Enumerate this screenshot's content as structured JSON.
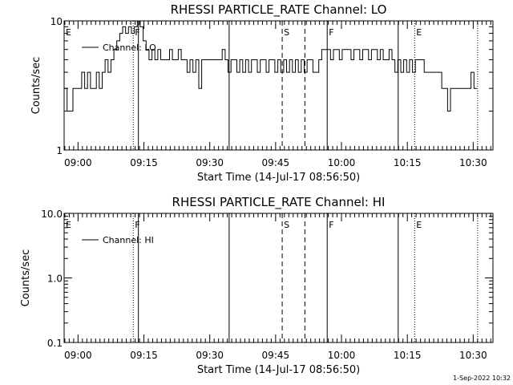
{
  "chart_data": [
    {
      "type": "line",
      "title": "RHESSI PARTICLE_RATE Channel: LO",
      "xlabel": "Start Time (14-Jul-17 08:56:50)",
      "ylabel": "Counts/sec",
      "yscale": "log",
      "ylim": [
        1,
        10
      ],
      "ytick_labels": [
        "10",
        "1"
      ],
      "xlim": [
        "08:56:50",
        "10:34:30"
      ],
      "xtick_labels": [
        "09:00",
        "09:15",
        "09:30",
        "09:45",
        "10:00",
        "10:15",
        "10:30"
      ],
      "legend": {
        "entry": "Channel: LO",
        "placement": "top-left"
      },
      "markers": [
        {
          "label": "E",
          "time": "08:56:50",
          "style": "none"
        },
        {
          "label": "F",
          "time": "09:12:35",
          "style": "dotted"
        },
        {
          "label": "",
          "time": "09:13:45",
          "style": "solid"
        },
        {
          "label": "",
          "time": "09:34:25",
          "style": "solid"
        },
        {
          "label": "S",
          "time": "09:46:30",
          "style": "dashed"
        },
        {
          "label": "",
          "time": "09:51:40",
          "style": "dashed"
        },
        {
          "label": "F",
          "time": "09:56:45",
          "style": "solid"
        },
        {
          "label": "",
          "time": "10:12:55",
          "style": "solid"
        },
        {
          "label": "E",
          "time": "10:16:40",
          "style": "dotted"
        },
        {
          "label": "",
          "time": "10:31:00",
          "style": "dotted"
        }
      ],
      "series": [
        {
          "name": "Channel: LO",
          "x": [
            "08:56:50",
            "08:57:30",
            "08:58:10",
            "08:58:50",
            "08:59:30",
            "09:00:10",
            "09:00:50",
            "09:01:30",
            "09:02:10",
            "09:02:50",
            "09:03:30",
            "09:04:10",
            "09:04:50",
            "09:05:30",
            "09:06:10",
            "09:06:50",
            "09:07:30",
            "09:08:10",
            "09:08:50",
            "09:09:30",
            "09:10:10",
            "09:10:50",
            "09:11:30",
            "09:12:10",
            "09:12:50",
            "09:13:30",
            "09:14:10",
            "09:14:50",
            "09:15:30",
            "09:16:10",
            "09:16:50",
            "09:17:30",
            "09:18:10",
            "09:18:50",
            "09:19:30",
            "09:20:10",
            "09:20:50",
            "09:21:30",
            "09:22:10",
            "09:22:50",
            "09:23:30",
            "09:24:10",
            "09:24:50",
            "09:25:30",
            "09:26:10",
            "09:26:50",
            "09:27:30",
            "09:28:10",
            "09:28:50",
            "09:29:30",
            "09:30:10",
            "09:30:50",
            "09:31:30",
            "09:32:10",
            "09:32:50",
            "09:33:30",
            "09:34:10",
            "09:34:50",
            "09:35:30",
            "09:36:10",
            "09:36:50",
            "09:37:30",
            "09:38:10",
            "09:38:50",
            "09:39:30",
            "09:40:10",
            "09:40:50",
            "09:41:30",
            "09:42:10",
            "09:42:50",
            "09:43:30",
            "09:44:10",
            "09:44:50",
            "09:45:30",
            "09:46:10",
            "09:46:50",
            "09:47:30",
            "09:48:10",
            "09:48:50",
            "09:49:30",
            "09:50:10",
            "09:50:50",
            "09:51:30",
            "09:52:10",
            "09:52:50",
            "09:53:30",
            "09:54:10",
            "09:54:50",
            "09:55:30",
            "09:56:10",
            "09:56:50",
            "09:57:30",
            "09:58:10",
            "09:58:50",
            "09:59:30",
            "10:00:10",
            "10:00:50",
            "10:01:30",
            "10:02:10",
            "10:02:50",
            "10:03:30",
            "10:04:10",
            "10:04:50",
            "10:05:30",
            "10:06:10",
            "10:06:50",
            "10:07:30",
            "10:08:10",
            "10:08:50",
            "10:09:30",
            "10:10:10",
            "10:10:50",
            "10:11:30",
            "10:12:10",
            "10:12:50",
            "10:13:30",
            "10:14:10",
            "10:14:50",
            "10:15:30",
            "10:16:10",
            "10:16:50",
            "10:17:30",
            "10:18:10",
            "10:18:50",
            "10:19:30",
            "10:20:10",
            "10:20:50",
            "10:21:30",
            "10:22:10",
            "10:22:50",
            "10:23:30",
            "10:24:10",
            "10:24:50",
            "10:25:30",
            "10:26:10",
            "10:26:50",
            "10:27:30",
            "10:28:10",
            "10:28:50",
            "10:29:30",
            "10:30:10"
          ],
          "values": [
            3,
            2,
            2,
            3,
            3,
            3,
            4,
            3,
            4,
            3,
            3,
            4,
            3,
            4,
            5,
            4,
            5,
            6,
            7,
            8,
            9,
            8,
            9,
            8,
            9,
            10,
            9,
            7,
            6,
            5,
            6,
            5,
            6,
            5,
            5,
            5,
            6,
            5,
            5,
            6,
            5,
            5,
            4,
            5,
            4,
            5,
            3,
            5,
            5,
            5,
            5,
            5,
            5,
            5,
            6,
            5,
            4,
            5,
            5,
            4,
            5,
            4,
            5,
            4,
            5,
            5,
            4,
            5,
            5,
            4,
            5,
            5,
            4,
            5,
            4,
            5,
            4,
            5,
            4,
            5,
            4,
            5,
            4,
            5,
            5,
            4,
            4,
            5,
            6,
            6,
            6,
            5,
            6,
            6,
            5,
            6,
            6,
            6,
            5,
            6,
            6,
            5,
            6,
            6,
            5,
            6,
            6,
            5,
            6,
            5,
            5,
            6,
            5,
            4,
            5,
            4,
            5,
            4,
            5,
            4,
            5,
            5,
            5,
            4,
            4,
            4,
            4,
            4,
            4,
            3,
            3,
            2,
            3,
            3,
            3,
            3,
            3,
            3,
            3,
            4,
            3
          ]
        }
      ]
    },
    {
      "type": "line",
      "title": "RHESSI PARTICLE_RATE Channel: HI",
      "xlabel": "Start Time (14-Jul-17 08:56:50)",
      "ylabel": "Counts/sec",
      "yscale": "log",
      "ylim": [
        0.1,
        10
      ],
      "ytick_labels": [
        "10.0",
        "1.0",
        "0.1"
      ],
      "xlim": [
        "08:56:50",
        "10:34:30"
      ],
      "xtick_labels": [
        "09:00",
        "09:15",
        "09:30",
        "09:45",
        "10:00",
        "10:15",
        "10:30"
      ],
      "legend": {
        "entry": "Channel: HI",
        "placement": "top-left"
      },
      "markers": [
        {
          "label": "E",
          "time": "08:56:50",
          "style": "none"
        },
        {
          "label": "F",
          "time": "09:12:35",
          "style": "dotted"
        },
        {
          "label": "",
          "time": "09:13:45",
          "style": "solid"
        },
        {
          "label": "",
          "time": "09:34:25",
          "style": "solid"
        },
        {
          "label": "S",
          "time": "09:46:30",
          "style": "dashed"
        },
        {
          "label": "",
          "time": "09:51:40",
          "style": "dashed"
        },
        {
          "label": "F",
          "time": "09:56:45",
          "style": "solid"
        },
        {
          "label": "",
          "time": "10:12:55",
          "style": "solid"
        },
        {
          "label": "E",
          "time": "10:16:40",
          "style": "dotted"
        },
        {
          "label": "",
          "time": "10:31:00",
          "style": "dotted"
        }
      ],
      "series": [
        {
          "name": "Channel: HI",
          "x": [],
          "values": []
        }
      ]
    }
  ],
  "footer": {
    "timestamp": "1-Sep-2022 10:32"
  }
}
